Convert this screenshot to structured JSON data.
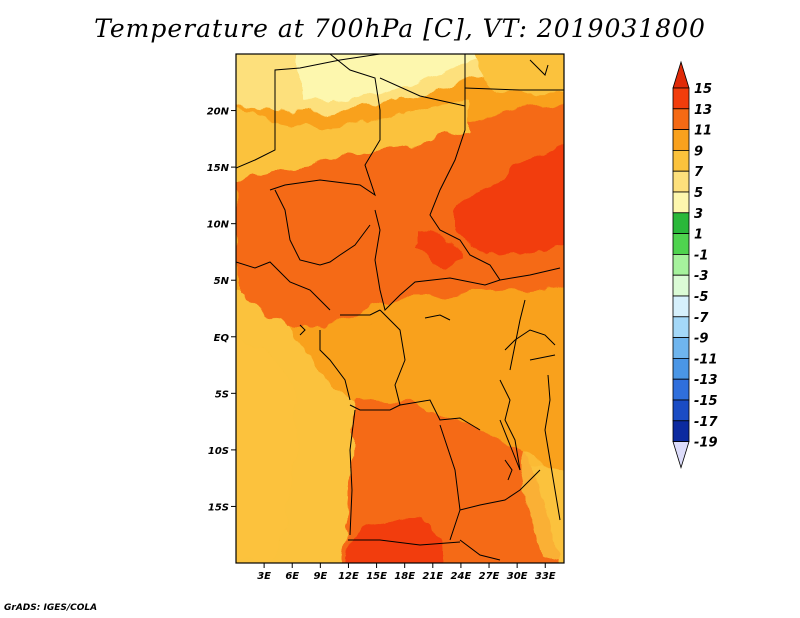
{
  "title": "Temperature at 700hPa [C], VT: 2019031800",
  "credit": "GrADS: IGES/COLA",
  "map": {
    "lon_range": [
      0,
      35
    ],
    "lat_range": [
      -20,
      25
    ],
    "x_ticks": [
      {
        "lon": 3,
        "label": "3E"
      },
      {
        "lon": 6,
        "label": "6E"
      },
      {
        "lon": 9,
        "label": "9E"
      },
      {
        "lon": 12,
        "label": "12E"
      },
      {
        "lon": 15,
        "label": "15E"
      },
      {
        "lon": 18,
        "label": "18E"
      },
      {
        "lon": 21,
        "label": "21E"
      },
      {
        "lon": 24,
        "label": "24E"
      },
      {
        "lon": 27,
        "label": "27E"
      },
      {
        "lon": 30,
        "label": "30E"
      },
      {
        "lon": 33,
        "label": "33E"
      }
    ],
    "y_ticks": [
      {
        "lat": 20,
        "label": "20N"
      },
      {
        "lat": 15,
        "label": "15N"
      },
      {
        "lat": 10,
        "label": "10N"
      },
      {
        "lat": 5,
        "label": "5N"
      },
      {
        "lat": 0,
        "label": "EQ"
      },
      {
        "lat": -5,
        "label": "5S"
      },
      {
        "lat": -10,
        "label": "10S"
      },
      {
        "lat": -15,
        "label": "15S"
      }
    ]
  },
  "colorbar": {
    "levels": [
      "15",
      "13",
      "11",
      "9",
      "7",
      "5",
      "3",
      "1",
      "-1",
      "-3",
      "-5",
      "-7",
      "-9",
      "-11",
      "-13",
      "-15",
      "-17",
      "-19"
    ],
    "colors": [
      "#f23d0c",
      "#f56a14",
      "#f9a11d",
      "#fbc23c",
      "#fde07c",
      "#fdf7ae",
      "#2ab83a",
      "#4fd34f",
      "#a6f29d",
      "#dbfbd6",
      "#d6f0fc",
      "#a4d8f8",
      "#6fb5ee",
      "#4a96e6",
      "#2f6fdc",
      "#1a4cc4",
      "#0c2aa0",
      "#081561"
    ],
    "top_color": "#e02a08",
    "bottom_color": "#dcdcfa"
  }
}
